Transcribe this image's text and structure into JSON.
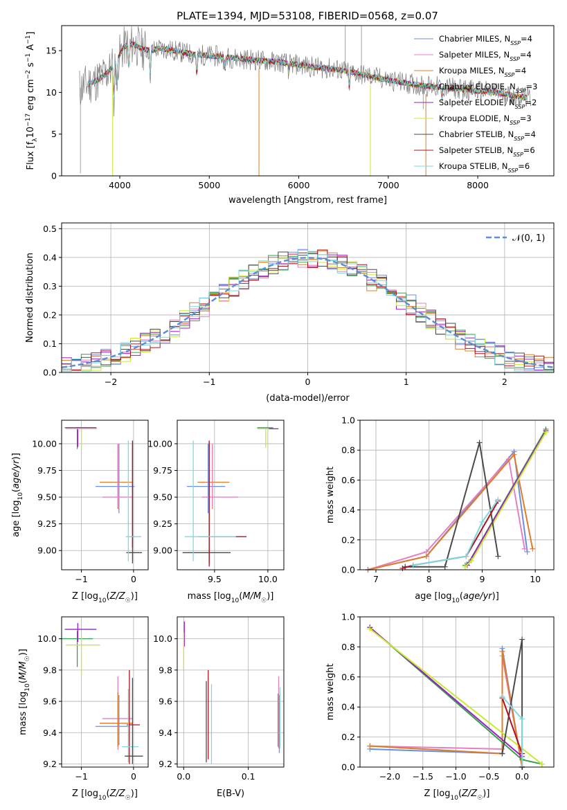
{
  "figure": {
    "title": "PLATE=1394, MJD=53108, FIBERID=0568, z=0.07"
  },
  "colors": {
    "Chabrier MILES": "#6b8fe0",
    "Salpeter MILES": "#e580c0",
    "Kroupa MILES": "#e07b2a",
    "Chabrier ELODIE": "#35a04a",
    "Salpeter ELODIE": "#9b1fc7",
    "Kroupa ELODIE": "#c9e830",
    "Chabrier STELIB": "#4a4a4a",
    "Salpeter STELIB": "#b0101c",
    "Kroupa STELIB": "#7ed8de",
    "data": "#7a7a7a",
    "gaussian": "#5b8fd6"
  },
  "chart_data": [
    {
      "id": "spectrum",
      "type": "line",
      "title": "PLATE=1394, MJD=53108, FIBERID=0568, z=0.07",
      "xlabel": "wavelength [Angstrom, rest frame]",
      "ylabel": "Flux [f_λ 10^-17 erg cm^-2 s^-1 A^-1]",
      "xlim": [
        3350,
        8850
      ],
      "ylim": [
        0,
        18
      ],
      "xticks": [
        4000,
        5000,
        6000,
        7000,
        8000
      ],
      "yticks": [
        0,
        5,
        10,
        15
      ],
      "legend_position": "top-right",
      "legend": [
        "Chabrier MILES, N_SSP=4",
        "Salpeter MILES, N_SSP=4",
        "Kroupa MILES, N_SSP=4",
        "Chabrier ELODIE, N_SSP=3",
        "Salpeter ELODIE, N_SSP=2",
        "Kroupa ELODIE, N_SSP=3",
        "Chabrier STELIB, N_SSP=4",
        "Salpeter STELIB, N_SSP=6",
        "Kroupa STELIB, N_SSP=6"
      ],
      "continuum": {
        "x": [
          3550,
          3650,
          3750,
          3850,
          3950,
          4050,
          4150,
          4250,
          4350,
          4450,
          4600,
          4800,
          5000,
          5200,
          5400,
          5600,
          5800,
          6000,
          6200,
          6400,
          6600,
          6800,
          7000,
          7200,
          7400,
          7600,
          7800,
          8000,
          8200,
          8400,
          8600
        ],
        "y": [
          10.5,
          11.0,
          11.5,
          12.2,
          13.5,
          15.5,
          15.8,
          15.2,
          15.0,
          15.3,
          15.0,
          14.6,
          14.4,
          14.2,
          14.0,
          13.8,
          13.6,
          13.3,
          13.0,
          12.8,
          12.4,
          11.9,
          11.5,
          11.1,
          10.8,
          10.6,
          10.4,
          10.2,
          10.0,
          9.6,
          9.3
        ]
      }
    },
    {
      "id": "residuals",
      "type": "line",
      "xlabel": "(data-model)/error",
      "ylabel": "Normed distribution",
      "xlim": [
        -2.5,
        2.5
      ],
      "ylim": [
        0,
        0.52
      ],
      "xticks": [
        -2,
        -1,
        0,
        1,
        2
      ],
      "yticks": [
        0.0,
        0.1,
        0.2,
        0.3,
        0.4,
        0.5
      ],
      "legend_label": "𝒩(0, 1)",
      "legend_position": "top-right",
      "bin_width": 0.1,
      "series": [
        {
          "name": "Chabrier MILES",
          "seed": 1
        },
        {
          "name": "Salpeter MILES",
          "seed": 2
        },
        {
          "name": "Kroupa MILES",
          "seed": 3
        },
        {
          "name": "Chabrier ELODIE",
          "seed": 4
        },
        {
          "name": "Salpeter ELODIE",
          "seed": 5
        },
        {
          "name": "Kroupa ELODIE",
          "seed": 6
        },
        {
          "name": "Chabrier STELIB",
          "seed": 7
        },
        {
          "name": "Salpeter STELIB",
          "seed": 8
        },
        {
          "name": "Kroupa STELIB",
          "seed": 9
        }
      ]
    },
    {
      "id": "age-vs-Z",
      "type": "scatter",
      "xlabel": "Z [log10(Z/Z☉)]",
      "ylabel": "age [log10(age/yr)]",
      "xlim": [
        -1.38,
        0.28
      ],
      "ylim": [
        8.82,
        10.22
      ],
      "xticks": [
        -1,
        0
      ],
      "yticks": [
        9.0,
        9.25,
        9.5,
        9.75,
        10.0
      ],
      "points": [
        {
          "name": "Chabrier ELODIE",
          "x": -1.08,
          "xerr": [
            0.2,
            0.36
          ],
          "y": 10.15,
          "yerr": [
            0.2,
            0.0
          ]
        },
        {
          "name": "Salpeter ELODIE",
          "x": -1.07,
          "xerr": [
            0.25,
            0.36
          ],
          "y": 10.15,
          "yerr": [
            0.18,
            0.0
          ]
        },
        {
          "name": "Kroupa ELODIE",
          "x": -1.0,
          "xerr": [
            0.3,
            0.3
          ],
          "y": 10.14,
          "yerr": [
            0.2,
            0.0
          ]
        },
        {
          "name": "Kroupa MILES",
          "x": -0.3,
          "xerr": [
            0.35,
            0.28
          ],
          "y": 9.64,
          "yerr": [
            0.25,
            0.35
          ]
        },
        {
          "name": "Chabrier MILES",
          "x": -0.28,
          "xerr": [
            0.45,
            0.3
          ],
          "y": 9.6,
          "yerr": [
            0.25,
            0.4
          ]
        },
        {
          "name": "Salpeter MILES",
          "x": -0.3,
          "xerr": [
            0.3,
            0.28
          ],
          "y": 9.5,
          "yerr": [
            0.1,
            0.5
          ]
        },
        {
          "name": "Chabrier STELIB",
          "x": -0.02,
          "xerr": [
            0.12,
            0.18
          ],
          "y": 8.98,
          "yerr": [
            0.1,
            1.03
          ]
        },
        {
          "name": "Salpeter STELIB",
          "x": -0.02,
          "xerr": [
            0.05,
            0.05
          ],
          "y": 9.13,
          "yerr": [
            0.1,
            0.9
          ]
        },
        {
          "name": "Kroupa STELIB",
          "x": -0.1,
          "xerr": [
            0.05,
            0.25
          ],
          "y": 9.13,
          "yerr": [
            0.23,
            0.9
          ]
        }
      ]
    },
    {
      "id": "age-vs-mass",
      "type": "scatter",
      "xlabel": "mass [log10(M/M☉)]",
      "ylabel": "",
      "xlim": [
        9.15,
        10.15
      ],
      "ylim": [
        8.82,
        10.22
      ],
      "xticks": [
        9.5,
        10.0
      ],
      "yticks": [
        9.0,
        9.25,
        9.5,
        9.75,
        10.0
      ],
      "points": [
        {
          "name": "Chabrier ELODIE",
          "x": 10.0,
          "xerr": [
            0.1,
            0.05
          ],
          "y": 10.15,
          "yerr": [
            0.0,
            0.0
          ]
        },
        {
          "name": "Salpeter ELODIE",
          "x": 10.05,
          "xerr": [
            0.05,
            0.05
          ],
          "y": 10.14,
          "yerr": [
            0.0,
            0.0
          ]
        },
        {
          "name": "Kroupa ELODIE",
          "x": 9.98,
          "xerr": [
            0.08,
            0.03
          ],
          "y": 10.14,
          "yerr": [
            0.18,
            0.0
          ]
        },
        {
          "name": "Kroupa MILES",
          "x": 9.48,
          "xerr": [
            0.14,
            0.16
          ],
          "y": 9.64,
          "yerr": [
            0.25,
            0.35
          ]
        },
        {
          "name": "Chabrier MILES",
          "x": 9.44,
          "xerr": [
            0.2,
            0.16
          ],
          "y": 9.6,
          "yerr": [
            0.25,
            0.4
          ]
        },
        {
          "name": "Salpeter MILES",
          "x": 9.48,
          "xerr": [
            0.1,
            0.24
          ],
          "y": 9.5,
          "yerr": [
            0.1,
            0.5
          ]
        },
        {
          "name": "Chabrier STELIB",
          "x": 9.45,
          "xerr": [
            0.25,
            0.2
          ],
          "y": 8.98,
          "yerr": [
            0.1,
            1.03
          ]
        },
        {
          "name": "Salpeter STELIB",
          "x": 9.45,
          "xerr": [
            0.1,
            0.35
          ],
          "y": 9.13,
          "yerr": [
            0.28,
            0.9
          ]
        },
        {
          "name": "Kroupa STELIB",
          "x": 9.3,
          "xerr": [
            0.08,
            0.4
          ],
          "y": 9.13,
          "yerr": [
            0.23,
            0.9
          ]
        }
      ]
    },
    {
      "id": "mass-weight-vs-age",
      "type": "line",
      "xlabel": "age [log10(age/yr)]",
      "ylabel": "mass weight",
      "xlim": [
        6.7,
        10.35
      ],
      "ylim": [
        0,
        1.0
      ],
      "xticks": [
        7,
        8,
        9,
        10
      ],
      "yticks": [
        0.0,
        0.2,
        0.4,
        0.6,
        0.8,
        1.0
      ],
      "series": [
        {
          "name": "Chabrier MILES",
          "x": [
            6.85,
            7.95,
            9.6,
            9.85
          ],
          "y": [
            0.0,
            0.09,
            0.79,
            0.12
          ]
        },
        {
          "name": "Salpeter MILES",
          "x": [
            6.85,
            7.95,
            9.5,
            9.8
          ],
          "y": [
            0.0,
            0.12,
            0.74,
            0.14
          ]
        },
        {
          "name": "Kroupa MILES",
          "x": [
            6.85,
            7.95,
            9.6,
            9.95
          ],
          "y": [
            0.0,
            0.09,
            0.77,
            0.14
          ]
        },
        {
          "name": "Chabrier ELODIE",
          "x": [
            8.68,
            8.75,
            10.2
          ],
          "y": [
            0.03,
            0.05,
            0.94
          ]
        },
        {
          "name": "Salpeter ELODIE",
          "x": [
            8.72,
            10.2
          ],
          "y": [
            0.03,
            0.93
          ]
        },
        {
          "name": "Kroupa ELODIE",
          "x": [
            8.68,
            8.8,
            10.2
          ],
          "y": [
            0.02,
            0.06,
            0.92
          ]
        },
        {
          "name": "Chabrier STELIB",
          "x": [
            7.55,
            8.3,
            8.95,
            9.3
          ],
          "y": [
            0.02,
            0.02,
            0.85,
            0.09
          ]
        },
        {
          "name": "Salpeter STELIB",
          "x": [
            7.5,
            7.7,
            8.7,
            9.3
          ],
          "y": [
            0.01,
            0.03,
            0.09,
            0.46
          ]
        },
        {
          "name": "Kroupa STELIB",
          "x": [
            7.7,
            8.7,
            9.0,
            9.3
          ],
          "y": [
            0.03,
            0.09,
            0.32,
            0.47
          ]
        }
      ]
    },
    {
      "id": "mass-vs-Z",
      "type": "scatter",
      "xlabel": "Z [log10(Z/Z☉)]",
      "ylabel": "mass [log10(M/M☉)]",
      "xlim": [
        -1.38,
        0.28
      ],
      "ylim": [
        9.18,
        10.14
      ],
      "xticks": [
        -1,
        0
      ],
      "yticks": [
        9.2,
        9.4,
        9.6,
        9.8,
        10.0
      ],
      "points": [
        {
          "name": "Chabrier ELODIE",
          "x": -1.08,
          "xerr": [
            0.3,
            0.3
          ],
          "y": 10.0,
          "yerr": [
            0.18,
            0.05
          ]
        },
        {
          "name": "Salpeter ELODIE",
          "x": -1.07,
          "xerr": [
            0.25,
            0.36
          ],
          "y": 10.06,
          "yerr": [
            0.08,
            0.04
          ]
        },
        {
          "name": "Kroupa ELODIE",
          "x": -1.0,
          "xerr": [
            0.3,
            0.36
          ],
          "y": 9.96,
          "yerr": [
            0.2,
            0.05
          ]
        },
        {
          "name": "Salpeter MILES",
          "x": -0.3,
          "xerr": [
            0.3,
            0.28
          ],
          "y": 9.49,
          "yerr": [
            0.2,
            0.27
          ]
        },
        {
          "name": "Kroupa MILES",
          "x": -0.3,
          "xerr": [
            0.35,
            0.28
          ],
          "y": 9.46,
          "yerr": [
            0.15,
            0.2
          ]
        },
        {
          "name": "Chabrier MILES",
          "x": -0.28,
          "xerr": [
            0.45,
            0.2
          ],
          "y": 9.44,
          "yerr": [
            0.12,
            0.2
          ]
        },
        {
          "name": "Salpeter STELIB",
          "x": -0.08,
          "xerr": [
            0.05,
            0.2
          ],
          "y": 9.45,
          "yerr": [
            0.25,
            0.35
          ]
        },
        {
          "name": "Kroupa STELIB",
          "x": -0.1,
          "xerr": [
            0.12,
            0.2
          ],
          "y": 9.31,
          "yerr": [
            0.1,
            0.37
          ]
        },
        {
          "name": "Chabrier STELIB",
          "x": -0.02,
          "xerr": [
            0.15,
            0.2
          ],
          "y": 9.25,
          "yerr": [
            0.05,
            0.5
          ]
        }
      ]
    },
    {
      "id": "mass-vs-ebv",
      "type": "scatter",
      "xlabel": "E(B-V)",
      "ylabel": "",
      "xlim": [
        -0.01,
        0.155
      ],
      "ylim": [
        9.18,
        10.14
      ],
      "xticks": [
        0.0,
        0.1
      ],
      "yticks": [
        9.2,
        9.4,
        9.6,
        9.8,
        10.0
      ],
      "points": [
        {
          "name": "Salpeter ELODIE",
          "x": 0.001,
          "y": 10.0,
          "yerr": [
            0.05,
            0.11
          ]
        },
        {
          "name": "Kroupa ELODIE",
          "x": 0.0,
          "y": 9.96,
          "yerr": [
            0.16,
            0.08
          ]
        },
        {
          "name": "Chabrier STELIB",
          "x": 0.035,
          "y": 9.45,
          "yerr": [
            0.24,
            0.28
          ]
        },
        {
          "name": "Salpeter STELIB",
          "x": 0.038,
          "y": 9.5,
          "yerr": [
            0.27,
            0.3
          ]
        },
        {
          "name": "Kroupa STELIB",
          "x": 0.043,
          "y": 9.48,
          "yerr": [
            0.28,
            0.23
          ]
        },
        {
          "name": "Salpeter MILES",
          "x": 0.147,
          "y": 9.5,
          "yerr": [
            0.2,
            0.26
          ]
        },
        {
          "name": "Kroupa MILES",
          "x": 0.146,
          "y": 9.46,
          "yerr": [
            0.15,
            0.19
          ]
        },
        {
          "name": "Chabrier MILES",
          "x": 0.148,
          "y": 9.44,
          "yerr": [
            0.17,
            0.2
          ]
        },
        {
          "name": "Kroupa STELIB",
          "x": 0.149,
          "y": 9.5,
          "yerr": [
            0.2,
            0.19
          ]
        }
      ]
    },
    {
      "id": "mass-weight-vs-Z",
      "type": "line",
      "xlabel": "Z [log10(Z/Z☉)]",
      "ylabel": "mass weight",
      "xlim": [
        -2.45,
        0.48
      ],
      "ylim": [
        0,
        1.0
      ],
      "xticks": [
        -2.0,
        -1.5,
        -1.0,
        -0.5,
        0.0
      ],
      "yticks": [
        0.0,
        0.2,
        0.4,
        0.6,
        0.8,
        1.0
      ],
      "series": [
        {
          "name": "Chabrier MILES",
          "x": [
            -2.3,
            -0.3,
            -0.3,
            0.0
          ],
          "y": [
            0.12,
            0.09,
            0.79,
            0.0
          ]
        },
        {
          "name": "Salpeter MILES",
          "x": [
            -2.3,
            -0.3,
            -0.3,
            0.0
          ],
          "y": [
            0.14,
            0.12,
            0.74,
            0.0
          ]
        },
        {
          "name": "Kroupa MILES",
          "x": [
            -2.3,
            -0.3,
            -0.3,
            0.0
          ],
          "y": [
            0.14,
            0.09,
            0.77,
            0.0
          ]
        },
        {
          "name": "Chabrier ELODIE",
          "x": [
            -2.3,
            0.0,
            0.3
          ],
          "y": [
            0.93,
            0.05,
            0.02
          ]
        },
        {
          "name": "Salpeter ELODIE",
          "x": [
            -2.3,
            0.0
          ],
          "y": [
            0.93,
            0.07
          ]
        },
        {
          "name": "Kroupa ELODIE",
          "x": [
            -2.3,
            0.3
          ],
          "y": [
            0.92,
            0.02
          ]
        },
        {
          "name": "Chabrier STELIB",
          "x": [
            -0.3,
            0.0,
            0.0
          ],
          "y": [
            0.09,
            0.85,
            0.0
          ]
        },
        {
          "name": "Salpeter STELIB",
          "x": [
            -0.3,
            0.0,
            0.0
          ],
          "y": [
            0.46,
            0.09,
            0.0
          ]
        },
        {
          "name": "Kroupa STELIB",
          "x": [
            -0.3,
            0.0,
            0.0
          ],
          "y": [
            0.47,
            0.32,
            0.0
          ]
        }
      ]
    }
  ]
}
